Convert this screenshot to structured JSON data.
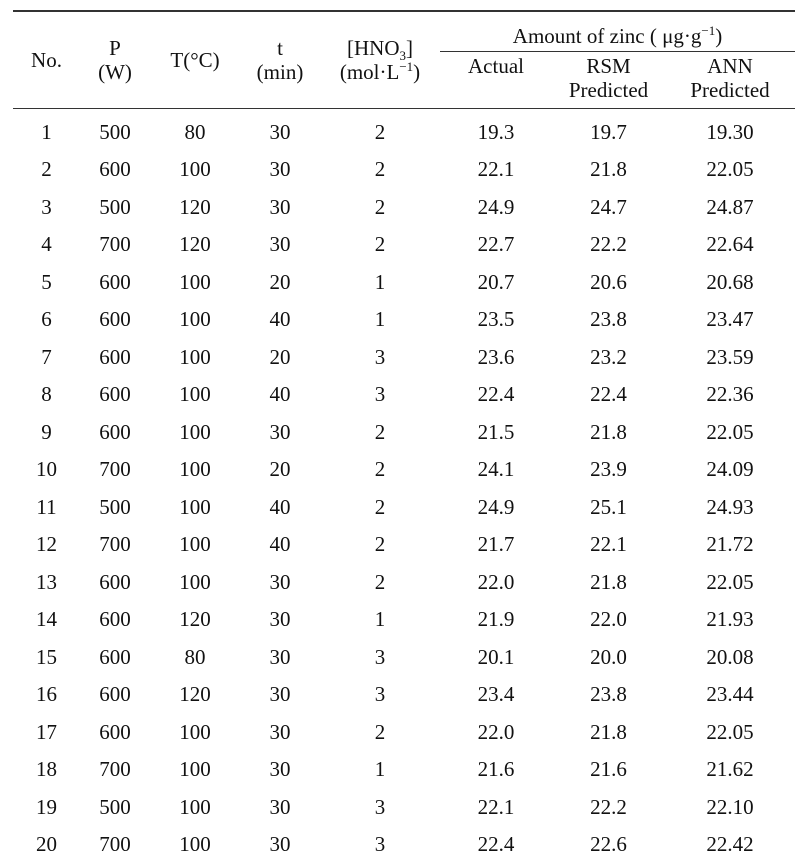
{
  "headers": {
    "no": "No.",
    "p": [
      "P",
      "(W)"
    ],
    "t_temp": "T(°C)",
    "t_time": [
      "t",
      "(min)"
    ],
    "hno3": {
      "line1_pre": "[HNO",
      "line1_sub": "3",
      "line1_post": "]",
      "line2_pre": "(mol·L",
      "line2_sup": "−1",
      "line2_post": ")"
    },
    "group": {
      "pre": "Amount of zinc ( μg·g",
      "sup": "−1",
      "post": ")"
    },
    "actual": "Actual",
    "rsm": [
      "RSM",
      "Predicted"
    ],
    "ann": [
      "ANN",
      "Predicted"
    ]
  },
  "rows": [
    [
      "1",
      "500",
      "80",
      "30",
      "2",
      "19.3",
      "19.7",
      "19.30"
    ],
    [
      "2",
      "600",
      "100",
      "30",
      "2",
      "22.1",
      "21.8",
      "22.05"
    ],
    [
      "3",
      "500",
      "120",
      "30",
      "2",
      "24.9",
      "24.7",
      "24.87"
    ],
    [
      "4",
      "700",
      "120",
      "30",
      "2",
      "22.7",
      "22.2",
      "22.64"
    ],
    [
      "5",
      "600",
      "100",
      "20",
      "1",
      "20.7",
      "20.6",
      "20.68"
    ],
    [
      "6",
      "600",
      "100",
      "40",
      "1",
      "23.5",
      "23.8",
      "23.47"
    ],
    [
      "7",
      "600",
      "100",
      "20",
      "3",
      "23.6",
      "23.2",
      "23.59"
    ],
    [
      "8",
      "600",
      "100",
      "40",
      "3",
      "22.4",
      "22.4",
      "22.36"
    ],
    [
      "9",
      "600",
      "100",
      "30",
      "2",
      "21.5",
      "21.8",
      "22.05"
    ],
    [
      "10",
      "700",
      "100",
      "20",
      "2",
      "24.1",
      "23.9",
      "24.09"
    ],
    [
      "11",
      "500",
      "100",
      "40",
      "2",
      "24.9",
      "25.1",
      "24.93"
    ],
    [
      "12",
      "700",
      "100",
      "40",
      "2",
      "21.7",
      "22.1",
      "21.72"
    ],
    [
      "13",
      "600",
      "100",
      "30",
      "2",
      "22.0",
      "21.8",
      "22.05"
    ],
    [
      "14",
      "600",
      "120",
      "30",
      "1",
      "21.9",
      "22.0",
      "21.93"
    ],
    [
      "15",
      "600",
      "80",
      "30",
      "3",
      "20.1",
      "20.0",
      "20.08"
    ],
    [
      "16",
      "600",
      "120",
      "30",
      "3",
      "23.4",
      "23.8",
      "23.44"
    ],
    [
      "17",
      "600",
      "100",
      "30",
      "2",
      "22.0",
      "21.8",
      "22.05"
    ],
    [
      "18",
      "700",
      "100",
      "30",
      "1",
      "21.6",
      "21.6",
      "21.62"
    ],
    [
      "19",
      "500",
      "100",
      "30",
      "3",
      "22.1",
      "22.2",
      "22.10"
    ],
    [
      "20",
      "700",
      "100",
      "30",
      "3",
      "22.4",
      "22.6",
      "22.42"
    ]
  ]
}
